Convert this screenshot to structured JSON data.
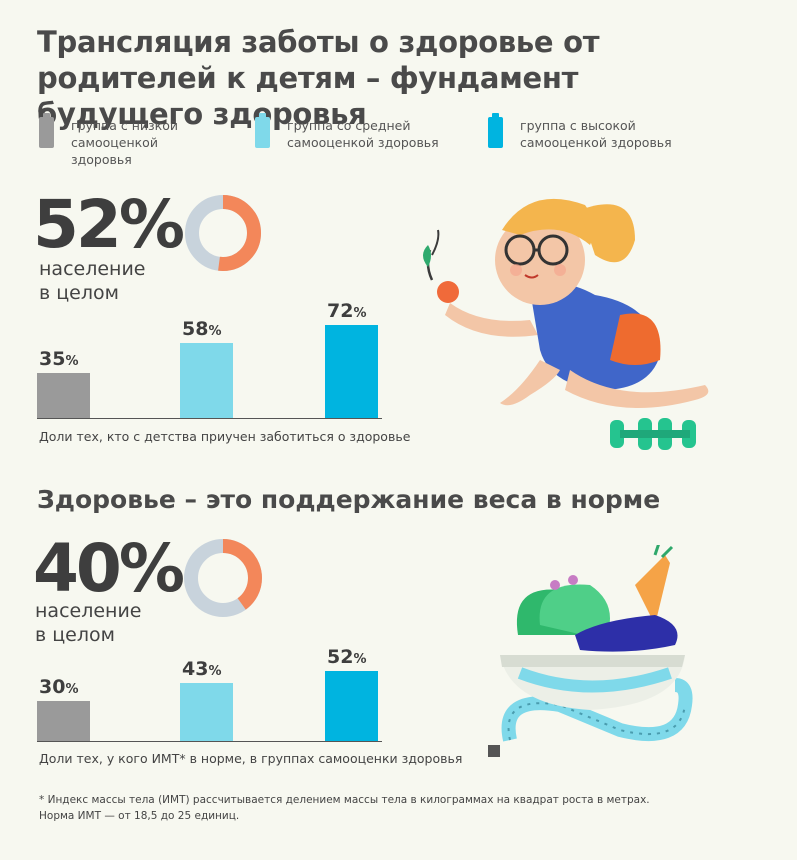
{
  "title": "Трансляция заботы о здоровье от родителей к детям – фундамент будущего здоровья",
  "colors": {
    "low": "#9a9a9a",
    "mid": "#7fd9ea",
    "high": "#00b4e0",
    "accent": "#f3875a",
    "track": "#c8d3dc"
  },
  "legend": [
    {
      "label": "группа с низкой самооценкой здоровья",
      "color": "#9a9a9a"
    },
    {
      "label": "группа со средней самооценкой здоровья",
      "color": "#7fd9ea"
    },
    {
      "label": "группа с высокой самооценкой здоровья",
      "color": "#00b4e0"
    }
  ],
  "section1": {
    "big_value": "52%",
    "big_label": "население в целом",
    "caption": "Доли тех, кто с детства приучен заботиться о здоровье"
  },
  "section2": {
    "heading": "Здоровье – это поддержание веса в норме",
    "big_value": "40%",
    "big_label": "население в целом",
    "caption": "Доли тех, у кого ИМТ* в норме, в группах самооценки здоровья"
  },
  "footnote": "* Индекс массы тела (ИМТ) рассчитывается делением массы тела в килограммах на квадрат роста в метрах. Норма ИМТ — от 18,5 до 25 единиц.",
  "chart_data": [
    {
      "type": "bar",
      "categories": [
        "группа с низкой самооценкой здоровья",
        "группа со средней самооценкой здоровья",
        "группа с высокой самооценкой здоровья"
      ],
      "values": [
        35,
        58,
        72
      ],
      "population_value": 52,
      "title": "",
      "xlabel": "Доли тех, кто с детства приучен заботиться о здоровье",
      "ylabel": "",
      "ylim": [
        0,
        72
      ]
    },
    {
      "type": "bar",
      "categories": [
        "группа с низкой самооценкой здоровья",
        "группа со средней самооценкой здоровья",
        "группа с высокой самооценкой здоровья"
      ],
      "values": [
        30,
        43,
        52
      ],
      "population_value": 40,
      "title": "",
      "xlabel": "Доли тех, у кого ИМТ* в норме, в группах самооценки здоровья",
      "ylabel": "",
      "ylim": [
        0,
        52
      ]
    }
  ]
}
